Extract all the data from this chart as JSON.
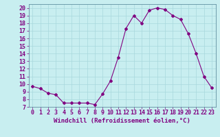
{
  "x": [
    0,
    1,
    2,
    3,
    4,
    5,
    6,
    7,
    8,
    9,
    10,
    11,
    12,
    13,
    14,
    15,
    16,
    17,
    18,
    19,
    20,
    21,
    22,
    23
  ],
  "y": [
    9.7,
    9.4,
    8.8,
    8.6,
    7.5,
    7.5,
    7.5,
    7.5,
    7.3,
    8.7,
    10.4,
    13.5,
    17.3,
    19.0,
    18.0,
    19.7,
    20.0,
    19.8,
    19.0,
    18.5,
    16.6,
    14.0,
    11.0,
    9.5
  ],
  "line_color": "#800080",
  "marker": "D",
  "markersize": 2,
  "bg_color": "#c8eef0",
  "grid_color": "#a8d8dc",
  "xlabel": "Windchill (Refroidissement éolien,°C)",
  "xlabel_fontsize": 6.5,
  "tick_fontsize": 6,
  "ylim": [
    7,
    20.5
  ],
  "xlim": [
    -0.5,
    23.5
  ],
  "yticks": [
    7,
    8,
    9,
    10,
    11,
    12,
    13,
    14,
    15,
    16,
    17,
    18,
    19,
    20
  ],
  "xticks": [
    0,
    1,
    2,
    3,
    4,
    5,
    6,
    7,
    8,
    9,
    10,
    11,
    12,
    13,
    14,
    15,
    16,
    17,
    18,
    19,
    20,
    21,
    22,
    23
  ]
}
